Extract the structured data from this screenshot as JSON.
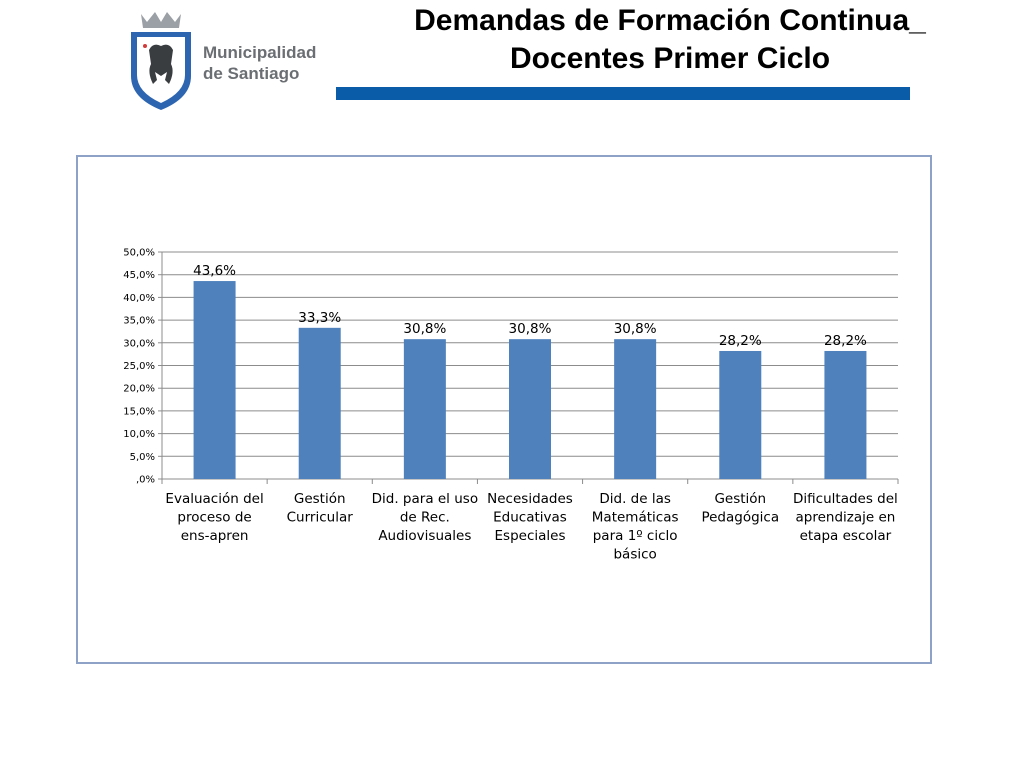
{
  "header": {
    "title_line1": "Demandas de Formación Continua_",
    "title_line2": "Docentes Primer Ciclo",
    "logo_line1": "Municipalidad",
    "logo_line2": "de Santiago",
    "logo_alt": "Municipalidad de Santiago crest",
    "bar_color": "#0a5ba8"
  },
  "chart_data": {
    "type": "bar",
    "categories": [
      [
        "Evaluación del",
        "proceso de",
        "ens-apren"
      ],
      [
        "Gestión",
        "Curricular"
      ],
      [
        "Did. para el uso",
        "de Rec.",
        "Audiovisuales"
      ],
      [
        "Necesidades",
        "Educativas",
        "Especiales"
      ],
      [
        "Did. de las",
        "Matemáticas",
        "para 1º ciclo",
        "básico"
      ],
      [
        "Gestión",
        "Pedagógica"
      ],
      [
        "Dificultades del",
        "aprendizaje en",
        "etapa escolar"
      ]
    ],
    "values": [
      43.6,
      33.3,
      30.8,
      30.8,
      30.8,
      28.2,
      28.2
    ],
    "data_labels": [
      "43,6%",
      "33,3%",
      "30,8%",
      "30,8%",
      "30,8%",
      "28,2%",
      "28,2%"
    ],
    "yticks": [
      ",0%",
      "5,0%",
      "10,0%",
      "15,0%",
      "20,0%",
      "25,0%",
      "30,0%",
      "35,0%",
      "40,0%",
      "45,0%",
      "50,0%"
    ],
    "ylim": [
      0,
      50
    ],
    "grid": true,
    "legend": "none",
    "bar_color": "#4f81bd",
    "title": "",
    "xlabel": "",
    "ylabel": ""
  }
}
